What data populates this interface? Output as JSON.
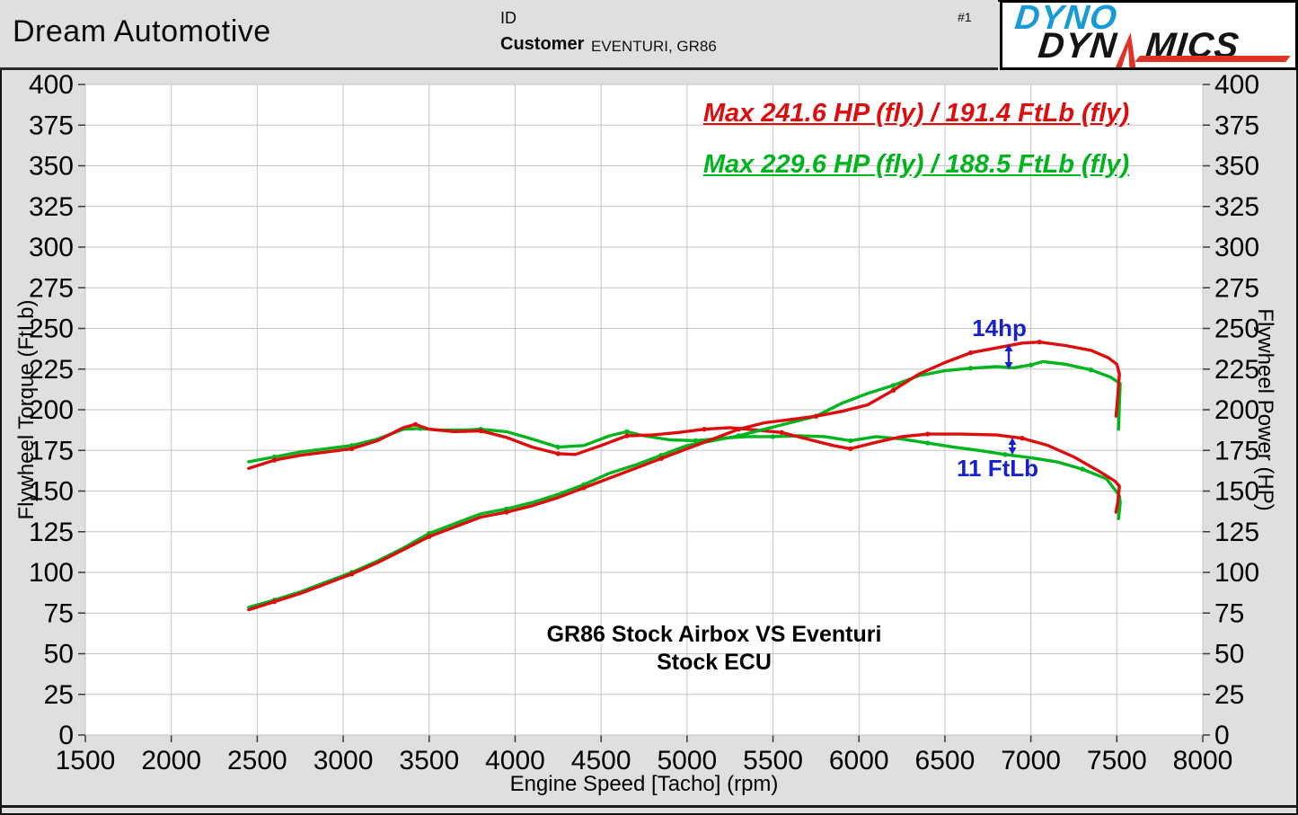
{
  "header": {
    "shop_name": "Dream Automotive",
    "id_label": "ID",
    "customer_label": "Customer",
    "customer_value": "EVENTURI, GR86",
    "run_number": "#1",
    "logo": {
      "dyno": "DYNO",
      "dyn": "DYN",
      "mics": "MICS"
    }
  },
  "chart_data": {
    "type": "line",
    "title_line1": "GR86 Stock Airbox VS Eventuri",
    "title_line2": "Stock ECU",
    "grid": true,
    "legend": "none",
    "axes": {
      "x": {
        "label": "Engine Speed [Tacho] (rpm)",
        "min": 1500,
        "max": 8000,
        "step": 500
      },
      "y_left": {
        "label": "Flywheel Torque (FtLb)",
        "min": 0,
        "max": 400,
        "step": 25
      },
      "y_right": {
        "label": "Flywheel Power (HP)",
        "min": 0,
        "max": 400,
        "step": 25
      }
    },
    "annotations": {
      "max_red": "Max 241.6 HP (fly) / 191.4 FtLb (fly)",
      "max_green": "Max 229.6 HP (fly) / 188.5 FtLb (fly)",
      "power_delta": "14hp",
      "torque_delta": "11 FtLb"
    },
    "colors": {
      "red": "#dd0d0d",
      "green": "#00b41e",
      "blue": "#1822cc"
    },
    "series": [
      {
        "name": "torque_green_ftlb",
        "color": "green",
        "points": [
          [
            2450,
            168
          ],
          [
            2600,
            171
          ],
          [
            2750,
            174
          ],
          [
            2900,
            176
          ],
          [
            3050,
            178
          ],
          [
            3200,
            182
          ],
          [
            3350,
            188
          ],
          [
            3450,
            188.5
          ],
          [
            3550,
            187.5
          ],
          [
            3700,
            187.5
          ],
          [
            3800,
            188
          ],
          [
            3950,
            186.5
          ],
          [
            4100,
            182
          ],
          [
            4250,
            177
          ],
          [
            4400,
            178
          ],
          [
            4550,
            184
          ],
          [
            4650,
            186.5
          ],
          [
            4750,
            184
          ],
          [
            4900,
            181.5
          ],
          [
            5050,
            181
          ],
          [
            5200,
            182.5
          ],
          [
            5350,
            183.5
          ],
          [
            5500,
            183.5
          ],
          [
            5650,
            184
          ],
          [
            5800,
            183.5
          ],
          [
            5950,
            181
          ],
          [
            6100,
            183.5
          ],
          [
            6250,
            182
          ],
          [
            6400,
            179.5
          ],
          [
            6550,
            177
          ],
          [
            6700,
            175
          ],
          [
            6850,
            172.5
          ],
          [
            7000,
            170.5
          ],
          [
            7150,
            168
          ],
          [
            7300,
            163.5
          ],
          [
            7440,
            157.5
          ],
          [
            7495,
            150
          ],
          [
            7515,
            147
          ],
          [
            7520,
            143
          ],
          [
            7510,
            133
          ]
        ]
      },
      {
        "name": "torque_red_ftlb",
        "color": "red",
        "points": [
          [
            2450,
            164
          ],
          [
            2600,
            169
          ],
          [
            2750,
            172
          ],
          [
            2900,
            174
          ],
          [
            3050,
            176
          ],
          [
            3200,
            181
          ],
          [
            3350,
            189
          ],
          [
            3420,
            191
          ],
          [
            3500,
            188
          ],
          [
            3650,
            186.5
          ],
          [
            3800,
            187
          ],
          [
            3950,
            183
          ],
          [
            4100,
            177
          ],
          [
            4250,
            173
          ],
          [
            4350,
            172.5
          ],
          [
            4500,
            178
          ],
          [
            4650,
            184
          ],
          [
            4800,
            184.5
          ],
          [
            4950,
            186
          ],
          [
            5100,
            188
          ],
          [
            5250,
            189
          ],
          [
            5400,
            187.5
          ],
          [
            5550,
            186
          ],
          [
            5700,
            182
          ],
          [
            5850,
            178
          ],
          [
            5950,
            176
          ],
          [
            6100,
            180
          ],
          [
            6250,
            183.5
          ],
          [
            6400,
            185
          ],
          [
            6600,
            185
          ],
          [
            6800,
            184.5
          ],
          [
            6950,
            182.5
          ],
          [
            7100,
            178
          ],
          [
            7250,
            171
          ],
          [
            7400,
            162
          ],
          [
            7490,
            156
          ],
          [
            7515,
            153
          ],
          [
            7505,
            143
          ],
          [
            7495,
            137
          ]
        ]
      },
      {
        "name": "power_green_hp",
        "color": "green",
        "points": [
          [
            2450,
            78.5
          ],
          [
            2600,
            83
          ],
          [
            2750,
            88
          ],
          [
            2900,
            94
          ],
          [
            3050,
            100
          ],
          [
            3200,
            107
          ],
          [
            3350,
            115
          ],
          [
            3500,
            124
          ],
          [
            3650,
            130
          ],
          [
            3800,
            136
          ],
          [
            3950,
            139
          ],
          [
            4100,
            143
          ],
          [
            4250,
            148
          ],
          [
            4400,
            154
          ],
          [
            4550,
            161
          ],
          [
            4700,
            166
          ],
          [
            4850,
            172
          ],
          [
            5000,
            178
          ],
          [
            5150,
            181
          ],
          [
            5300,
            184
          ],
          [
            5450,
            188
          ],
          [
            5600,
            192
          ],
          [
            5750,
            196
          ],
          [
            5900,
            204
          ],
          [
            6050,
            210
          ],
          [
            6200,
            215
          ],
          [
            6350,
            221
          ],
          [
            6500,
            224
          ],
          [
            6650,
            225.5
          ],
          [
            6800,
            226.5
          ],
          [
            6900,
            225.8
          ],
          [
            7000,
            227.5
          ],
          [
            7070,
            229.6
          ],
          [
            7200,
            228
          ],
          [
            7350,
            224.5
          ],
          [
            7465,
            220
          ],
          [
            7520,
            216
          ],
          [
            7515,
            204
          ],
          [
            7510,
            188
          ]
        ]
      },
      {
        "name": "power_red_hp",
        "color": "red",
        "points": [
          [
            2450,
            77
          ],
          [
            2600,
            82
          ],
          [
            2750,
            87
          ],
          [
            2900,
            93
          ],
          [
            3050,
            99
          ],
          [
            3200,
            106
          ],
          [
            3350,
            114
          ],
          [
            3500,
            122
          ],
          [
            3650,
            128
          ],
          [
            3800,
            134
          ],
          [
            3950,
            137
          ],
          [
            4100,
            141
          ],
          [
            4250,
            146
          ],
          [
            4400,
            152
          ],
          [
            4550,
            158
          ],
          [
            4700,
            164
          ],
          [
            4850,
            170
          ],
          [
            5000,
            176
          ],
          [
            5150,
            182
          ],
          [
            5300,
            188
          ],
          [
            5450,
            192
          ],
          [
            5600,
            194
          ],
          [
            5750,
            196
          ],
          [
            5900,
            199
          ],
          [
            6050,
            203
          ],
          [
            6200,
            212
          ],
          [
            6350,
            222
          ],
          [
            6500,
            229
          ],
          [
            6650,
            235
          ],
          [
            6800,
            238
          ],
          [
            6950,
            241
          ],
          [
            7050,
            241.6
          ],
          [
            7200,
            239.5
          ],
          [
            7350,
            236.5
          ],
          [
            7450,
            232
          ],
          [
            7500,
            228
          ],
          [
            7515,
            222
          ],
          [
            7505,
            208
          ],
          [
            7495,
            196
          ]
        ]
      }
    ]
  }
}
